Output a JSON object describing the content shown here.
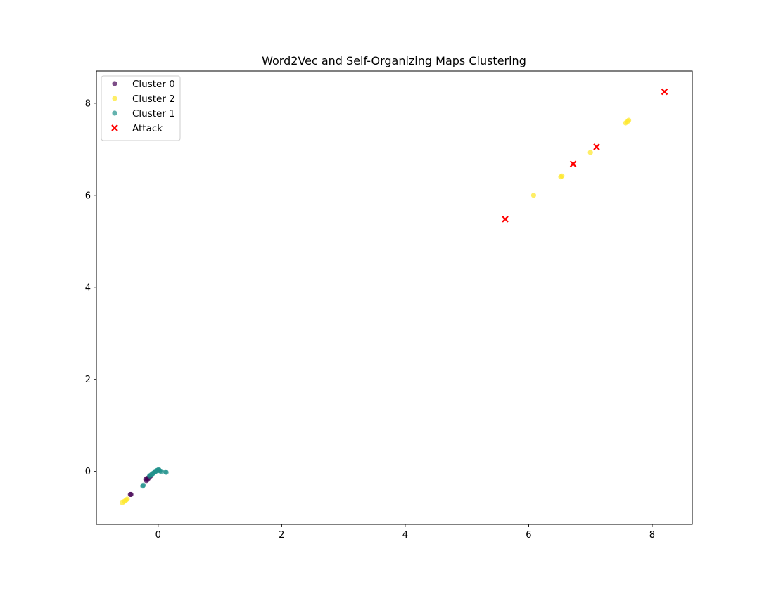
{
  "chart_data": {
    "type": "scatter",
    "title": "Word2Vec and Self-Organizing Maps Clustering",
    "xlabel": "",
    "ylabel": "",
    "xlim": [
      -1.0,
      8.65
    ],
    "ylim": [
      -1.15,
      8.7
    ],
    "xticks": [
      0,
      2,
      4,
      6,
      8
    ],
    "yticks": [
      0,
      2,
      4,
      6,
      8
    ],
    "grid": false,
    "legend_position": "upper-left",
    "series": [
      {
        "name": "Cluster 0",
        "color": "#440154",
        "marker": "circle",
        "alpha": 0.7,
        "x": [
          -0.45,
          -0.44,
          -0.2,
          -0.18,
          -0.17,
          -0.15,
          -0.14,
          -0.12,
          -0.19
        ],
        "y": [
          -0.5,
          -0.5,
          -0.17,
          -0.15,
          -0.18,
          -0.14,
          -0.12,
          -0.1,
          -0.2
        ]
      },
      {
        "name": "Cluster 2",
        "color": "#fde725",
        "marker": "circle",
        "alpha": 0.7,
        "x": [
          -0.58,
          -0.55,
          -0.52,
          -0.5,
          6.08,
          6.52,
          6.54,
          7.0,
          7.57,
          7.6,
          7.62
        ],
        "y": [
          -0.68,
          -0.65,
          -0.62,
          -0.6,
          6.0,
          6.4,
          6.42,
          6.93,
          7.57,
          7.6,
          7.63
        ]
      },
      {
        "name": "Cluster 1",
        "color": "#21918c",
        "marker": "circle",
        "alpha": 0.7,
        "x": [
          -0.25,
          -0.24,
          -0.14,
          -0.12,
          -0.1,
          -0.08,
          -0.06,
          -0.05,
          -0.03,
          -0.02,
          0.0,
          0.01,
          0.02,
          0.03,
          0.05,
          0.12,
          0.13,
          -0.09,
          -0.04
        ],
        "y": [
          -0.32,
          -0.3,
          -0.1,
          -0.08,
          -0.06,
          -0.04,
          -0.02,
          0.0,
          0.01,
          0.02,
          0.03,
          0.04,
          0.02,
          0.01,
          0.0,
          -0.01,
          -0.02,
          -0.05,
          0.0
        ]
      },
      {
        "name": "Attack",
        "color": "#ff0000",
        "marker": "x",
        "alpha": 1.0,
        "x": [
          5.62,
          6.72,
          7.1,
          8.2
        ],
        "y": [
          5.48,
          6.68,
          7.05,
          8.25
        ]
      }
    ]
  }
}
